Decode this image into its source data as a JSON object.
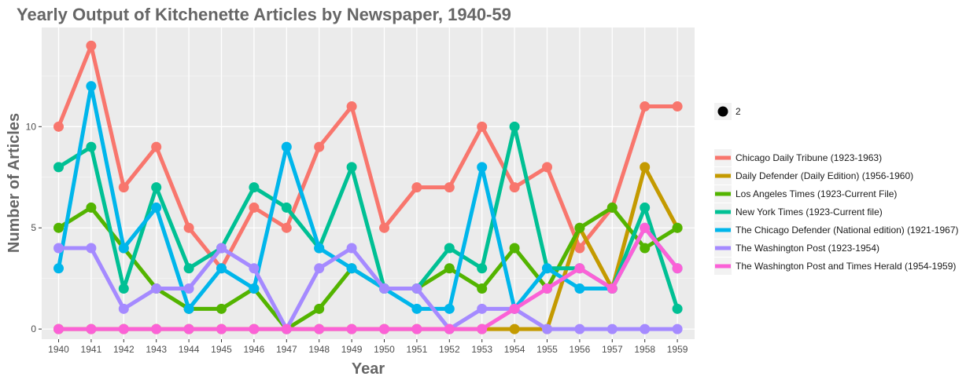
{
  "chart_data": {
    "type": "line",
    "title": "Yearly Output of Kitchenette Articles by Newspaper, 1940-59",
    "xlabel": "Year",
    "ylabel": "Number of Articles",
    "x": [
      1940,
      1941,
      1942,
      1943,
      1944,
      1945,
      1946,
      1947,
      1948,
      1949,
      1950,
      1951,
      1952,
      1953,
      1954,
      1955,
      1956,
      1957,
      1958,
      1959
    ],
    "ylim": [
      -0.5,
      14.9
    ],
    "yticks": [
      0,
      5,
      10
    ],
    "grid": true,
    "legend_position": "right",
    "size_legend": {
      "label": "2"
    },
    "series": [
      {
        "name": "Chicago Daily Tribune (1923-1963)",
        "color": "#F8766D",
        "values": [
          10,
          14,
          7,
          9,
          5,
          3,
          6,
          5,
          9,
          11,
          5,
          7,
          7,
          10,
          7,
          8,
          4,
          6,
          11,
          11
        ]
      },
      {
        "name": "Daily Defender (Daily Edition) (1956-1960)",
        "color": "#C49A00",
        "values": [
          0,
          0,
          0,
          0,
          0,
          0,
          0,
          0,
          0,
          0,
          0,
          0,
          0,
          0,
          0,
          0,
          5,
          2,
          8,
          5
        ]
      },
      {
        "name": "Los Angeles Times (1923-Current File)",
        "color": "#53B400",
        "values": [
          5,
          6,
          4,
          2,
          1,
          1,
          2,
          0,
          1,
          3,
          2,
          2,
          3,
          2,
          4,
          2,
          5,
          6,
          4,
          5
        ]
      },
      {
        "name": "New York Times (1923-Current file)",
        "color": "#00C094",
        "values": [
          8,
          9,
          2,
          7,
          3,
          4,
          7,
          6,
          4,
          8,
          2,
          2,
          4,
          3,
          10,
          3,
          3,
          2,
          6,
          1
        ]
      },
      {
        "name": "The Chicago Defender (National edition) (1921-1967)",
        "color": "#00B6EB",
        "values": [
          3,
          12,
          4,
          6,
          1,
          3,
          2,
          9,
          4,
          3,
          2,
          1,
          1,
          8,
          1,
          3,
          2,
          2,
          5,
          3
        ]
      },
      {
        "name": "The Washington Post (1923-1954)",
        "color": "#A58AFF",
        "values": [
          4,
          4,
          1,
          2,
          2,
          4,
          3,
          0,
          3,
          4,
          2,
          2,
          0,
          1,
          1,
          0,
          0,
          0,
          0,
          0
        ]
      },
      {
        "name": "The Washington Post and Times Herald (1954-1959)",
        "color": "#FB61D7",
        "values": [
          0,
          0,
          0,
          0,
          0,
          0,
          0,
          0,
          0,
          0,
          0,
          0,
          0,
          0,
          1,
          2,
          3,
          2,
          5,
          3
        ]
      }
    ]
  }
}
